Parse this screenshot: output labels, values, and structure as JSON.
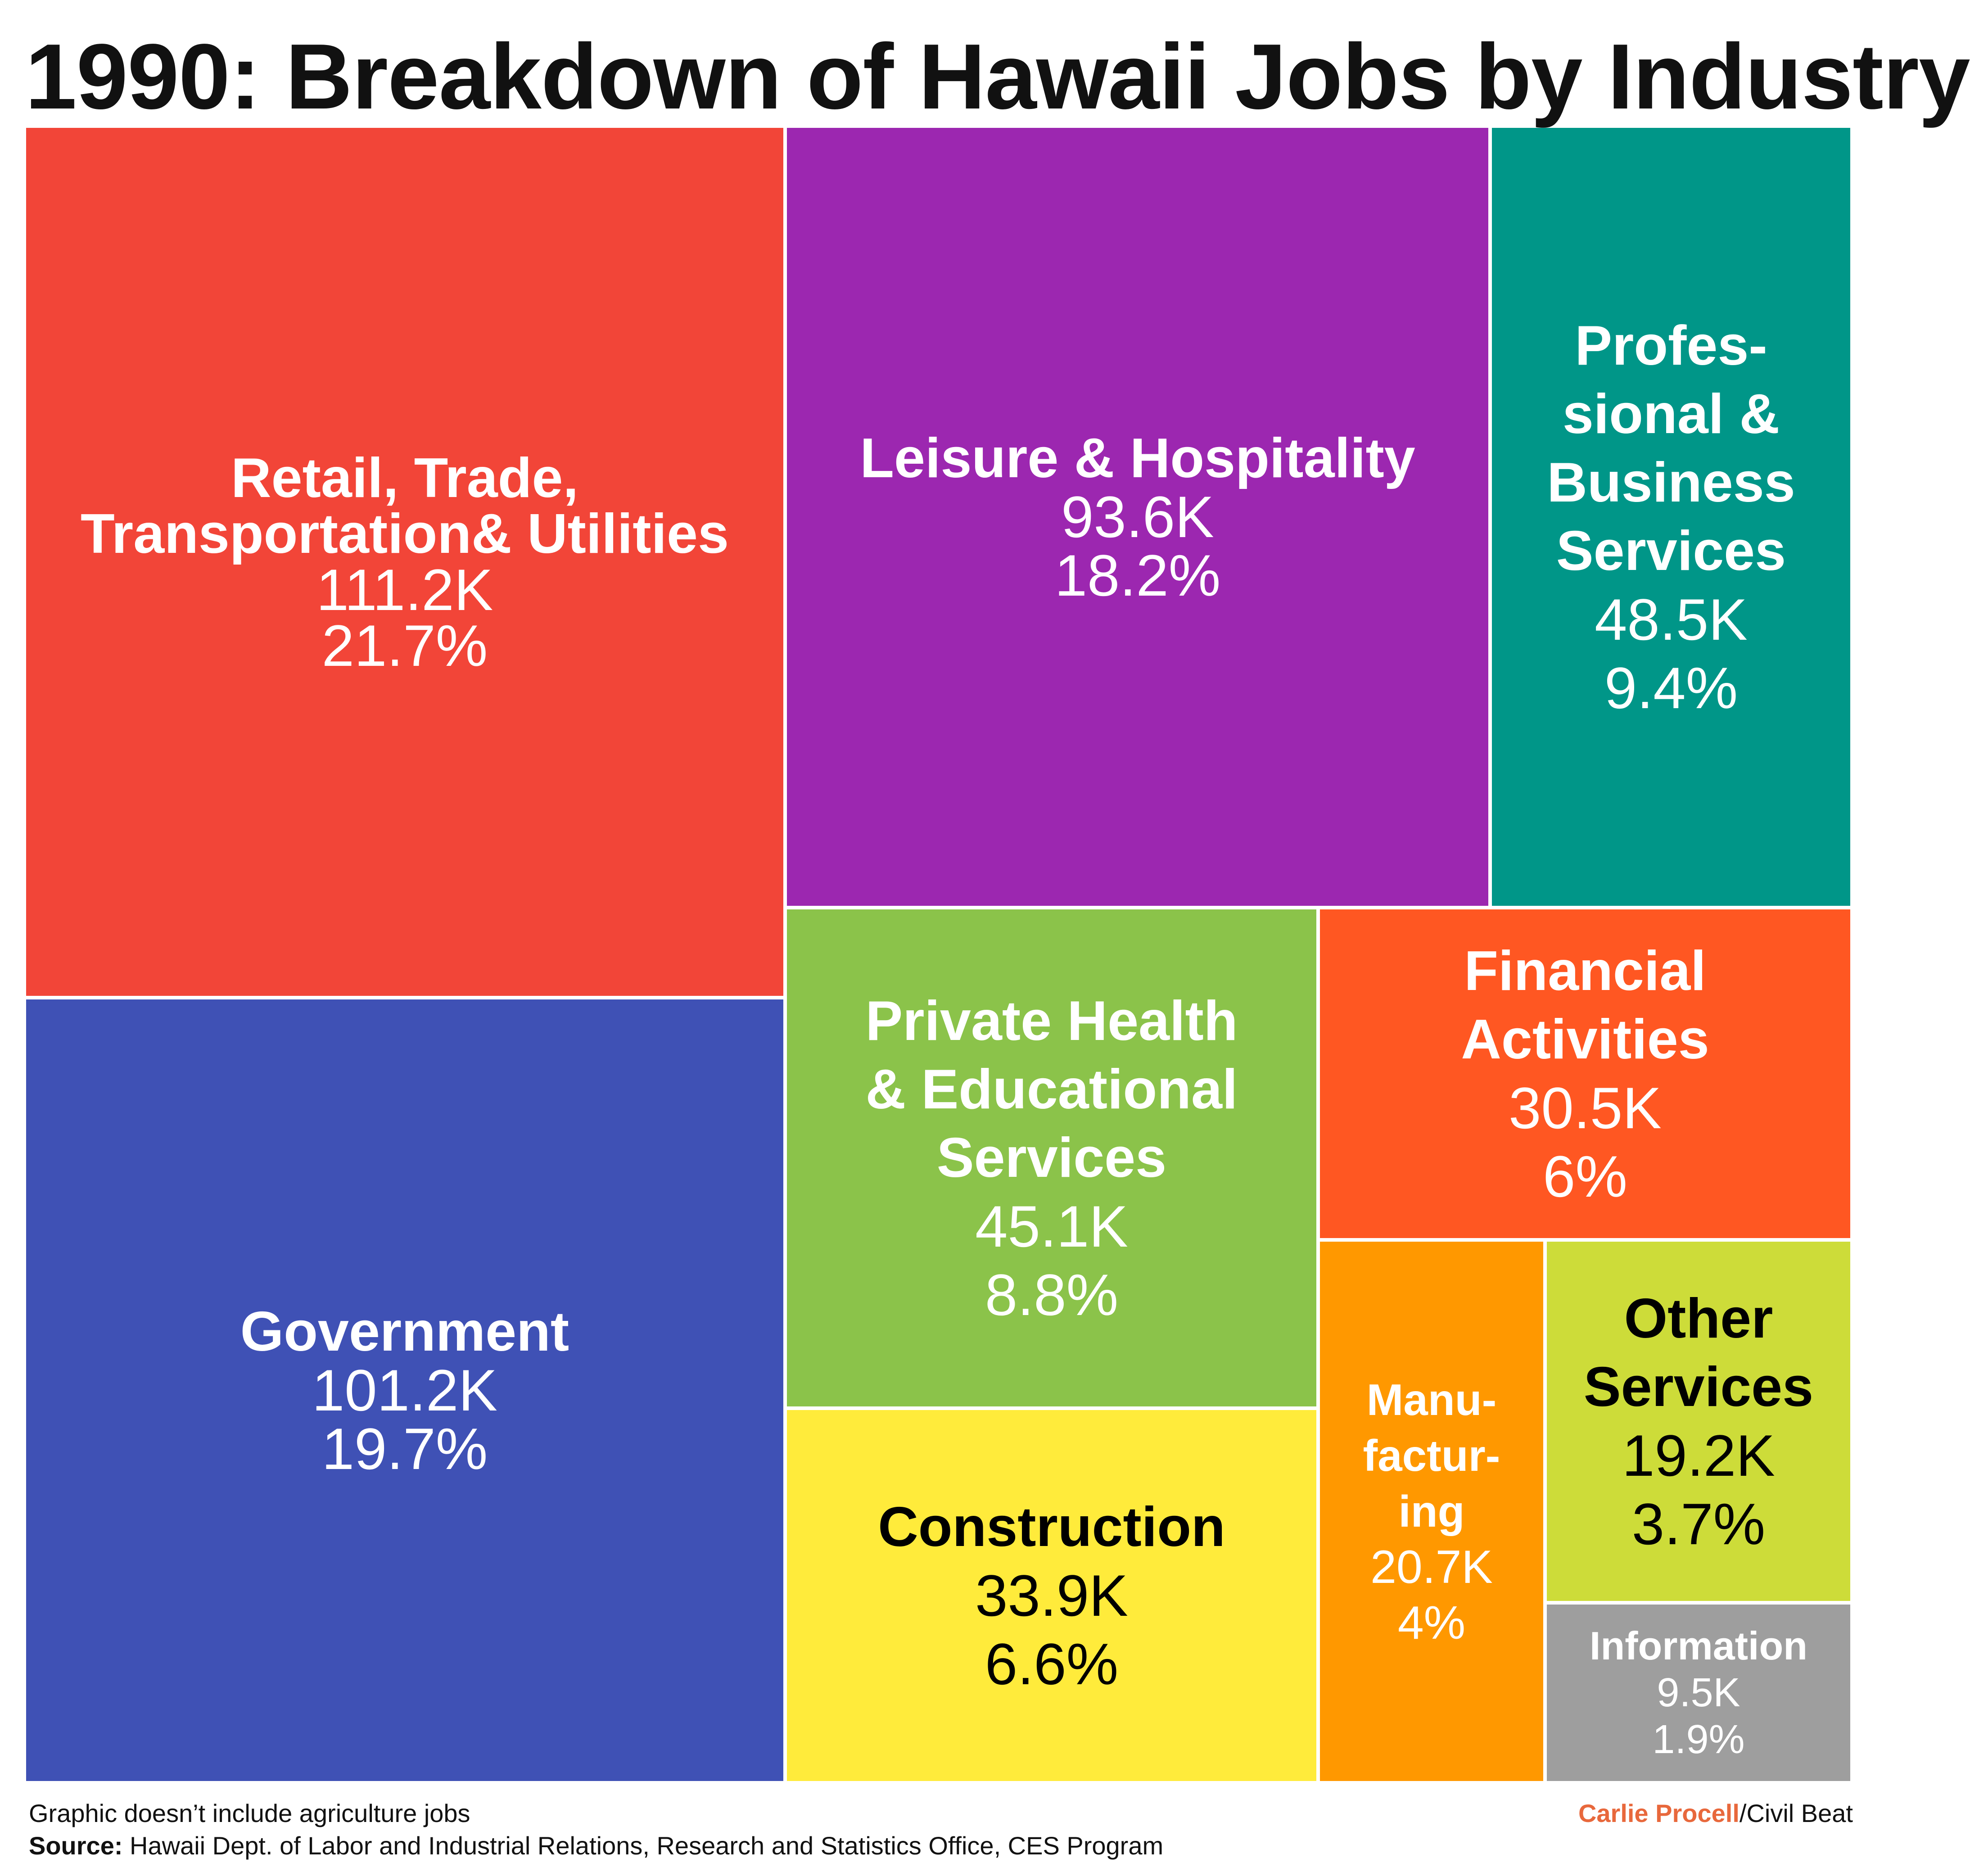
{
  "chart_data": {
    "type": "treemap",
    "title": "1990: Breakdown of Hawaii Jobs by Industry",
    "items": [
      {
        "label": "Retail, Trade,\nTransportation& Utilities",
        "value": 111.2,
        "value_text": "111.2K",
        "percent": 21.7,
        "percent_text": "21.7%",
        "color": "#f24538",
        "text_color": "#ffffff"
      },
      {
        "label": "Government",
        "value": 101.2,
        "value_text": "101.2K",
        "percent": 19.7,
        "percent_text": "19.7%",
        "color": "#3f51b5",
        "text_color": "#ffffff"
      },
      {
        "label": "Leisure & Hospitality",
        "value": 93.6,
        "value_text": "93.6K",
        "percent": 18.2,
        "percent_text": "18.2%",
        "color": "#9c27b0",
        "text_color": "#ffffff"
      },
      {
        "label": "Profes-\nsional &\nBusiness\nServices",
        "value": 48.5,
        "value_text": "48.5K",
        "percent": 9.4,
        "percent_text": "9.4%",
        "color": "#009688",
        "text_color": "#ffffff"
      },
      {
        "label": "Private Health\n& Educational\nServices",
        "value": 45.1,
        "value_text": "45.1K",
        "percent": 8.8,
        "percent_text": "8.8%",
        "color": "#8bc34a",
        "text_color": "#ffffff"
      },
      {
        "label": "Construction",
        "value": 33.9,
        "value_text": "33.9K",
        "percent": 6.6,
        "percent_text": "6.6%",
        "color": "#ffeb3b",
        "text_color": "#000000"
      },
      {
        "label": "Financial\nActivities",
        "value": 30.5,
        "value_text": "30.5K",
        "percent": 6,
        "percent_text": "6%",
        "color": "#ff5722",
        "text_color": "#ffffff"
      },
      {
        "label": "Manu-\nfactur-\ning",
        "value": 20.7,
        "value_text": "20.7K",
        "percent": 4,
        "percent_text": "4%",
        "color": "#ff9800",
        "text_color": "#ffffff"
      },
      {
        "label": "Other\nServices",
        "value": 19.2,
        "value_text": "19.2K",
        "percent": 3.7,
        "percent_text": "3.7%",
        "color": "#cddc39",
        "text_color": "#000000"
      },
      {
        "label": "Information",
        "value": 9.5,
        "value_text": "9.5K",
        "percent": 1.9,
        "percent_text": "1.9%",
        "color": "#9e9e9e",
        "text_color": "#ffffff"
      }
    ]
  },
  "footer": {
    "note": "Graphic doesn’t include agriculture jobs",
    "source_label": "Source:",
    "source_text": " Hawaii Dept. of Labor and Industrial Relations, Research and Statistics Office, CES Program",
    "credit_author": "Carlie Procell",
    "credit_org": "/Civil Beat"
  }
}
